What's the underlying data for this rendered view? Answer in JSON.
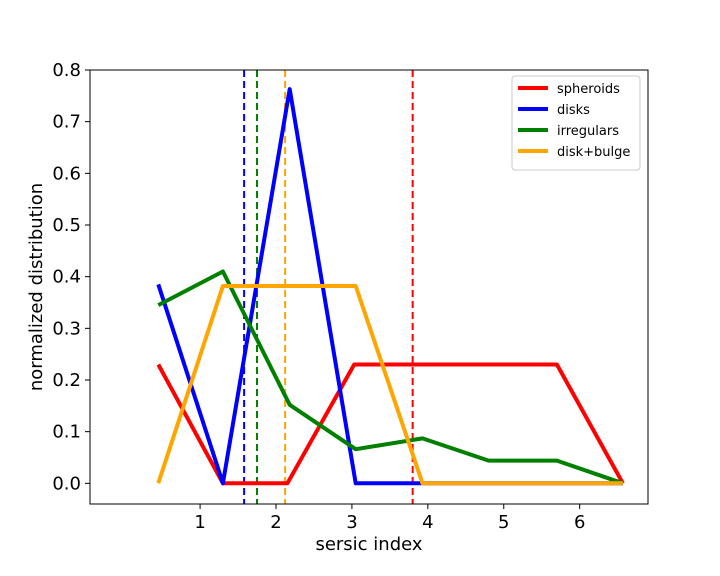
{
  "chart_data": {
    "type": "line",
    "xlabel": "sersic index",
    "ylabel": "normalized distribution",
    "xlim": [
      -0.45,
      6.9
    ],
    "ylim": [
      -0.04,
      0.8
    ],
    "xticks": [
      1,
      2,
      3,
      4,
      5,
      6
    ],
    "yticks": [
      0.0,
      0.1,
      0.2,
      0.3,
      0.4,
      0.5,
      0.6,
      0.7,
      0.8
    ],
    "legend_position": "top-right",
    "grid": false,
    "series": [
      {
        "name": "spheroids",
        "color": "#ff0000",
        "x": [
          0.45,
          1.3,
          2.15,
          3.03,
          3.92,
          4.8,
          5.7,
          6.57
        ],
        "y": [
          0.23,
          0.0,
          0.0,
          0.23,
          0.23,
          0.23,
          0.23,
          0.0
        ]
      },
      {
        "name": "disks",
        "color": "#0000ff",
        "x": [
          0.45,
          1.3,
          2.18,
          3.05,
          3.93,
          6.57
        ],
        "y": [
          0.385,
          0.0,
          0.763,
          0.0,
          0.0,
          0.0
        ]
      },
      {
        "name": "irregulars",
        "color": "#008000",
        "x": [
          0.45,
          1.3,
          2.18,
          3.05,
          3.93,
          4.8,
          5.7,
          6.57
        ],
        "y": [
          0.345,
          0.41,
          0.152,
          0.066,
          0.087,
          0.044,
          0.044,
          0.0
        ]
      },
      {
        "name": "disk+bulge",
        "color": "#ffa500",
        "x": [
          0.45,
          1.3,
          2.18,
          3.05,
          3.93,
          6.57
        ],
        "y": [
          0.0,
          0.382,
          0.382,
          0.382,
          0.0,
          0.0
        ]
      }
    ],
    "vlines": [
      {
        "x": 1.58,
        "color": "#0000ff",
        "style": "dashed"
      },
      {
        "x": 1.75,
        "color": "#008000",
        "style": "dashed"
      },
      {
        "x": 2.12,
        "color": "#ffa500",
        "style": "dashed"
      },
      {
        "x": 3.8,
        "color": "#ff0000",
        "style": "dashed"
      }
    ]
  }
}
